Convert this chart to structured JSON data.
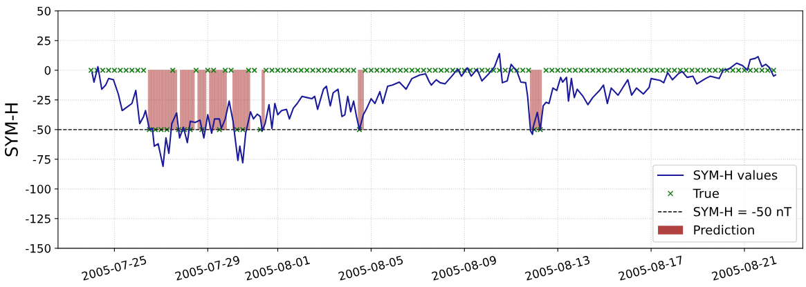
{
  "chart_data": {
    "type": "line",
    "ylabel": "SYM-H",
    "xlim": [
      "2005-07-22T14:00",
      "2005-08-23T12:00"
    ],
    "xticks": [
      "2005-07-25",
      "2005-07-29",
      "2005-08-01",
      "2005-08-05",
      "2005-08-09",
      "2005-08-13",
      "2005-08-17",
      "2005-08-21"
    ],
    "ylim": [
      -150,
      50
    ],
    "yticks": [
      -150,
      -125,
      -100,
      -75,
      -50,
      -25,
      0,
      25,
      50
    ],
    "grid": true,
    "legend": "bottom right",
    "ref_lines": [
      {
        "axis": "y",
        "value": -50,
        "label": "SYM-H = -50 nT",
        "color": "#000000",
        "line_style": "dashed"
      }
    ],
    "series": [
      {
        "name": "SYM-H values",
        "color": "#1a1a9a",
        "line_style": "solid",
        "x": [
          "2005-07-24T01:00",
          "2005-07-24T03:00",
          "2005-07-24T07:00",
          "2005-07-24T11:00",
          "2005-07-24T15:00",
          "2005-07-24T18:00",
          "2005-07-24T23:00",
          "2005-07-25T04:00",
          "2005-07-25T08:00",
          "2005-07-25T13:00",
          "2005-07-25T18:00",
          "2005-07-25T22:00",
          "2005-07-26T02:00",
          "2005-07-26T06:00",
          "2005-07-26T08:00",
          "2005-07-26T12:00",
          "2005-07-26T15:00",
          "2005-07-26T17:00",
          "2005-07-26T21:00",
          "2005-07-27T02:00",
          "2005-07-27T05:00",
          "2005-07-27T08:00",
          "2005-07-27T11:00",
          "2005-07-27T16:00",
          "2005-07-27T19:00",
          "2005-07-27T23:00",
          "2005-07-28T03:00",
          "2005-07-28T06:00",
          "2005-07-28T11:00",
          "2005-07-28T16:00",
          "2005-07-28T20:00",
          "2005-07-29T00:00",
          "2005-07-29T04:00",
          "2005-07-29T07:00",
          "2005-07-29T12:00",
          "2005-07-29T14:00",
          "2005-07-29T18:00",
          "2005-07-29T22:00",
          "2005-07-30T02:00",
          "2005-07-30T07:00",
          "2005-07-30T09:00",
          "2005-07-30T12:00",
          "2005-07-30T15:00",
          "2005-07-30T20:00",
          "2005-07-30T23:00",
          "2005-07-31T03:00",
          "2005-07-31T06:00",
          "2005-07-31T08:00",
          "2005-07-31T11:00",
          "2005-07-31T15:00",
          "2005-07-31T18:00",
          "2005-07-31T21:00",
          "2005-08-01T00:00",
          "2005-08-01T04:00",
          "2005-08-01T09:00",
          "2005-08-01T12:00",
          "2005-08-01T16:00",
          "2005-08-01T20:00",
          "2005-08-02T01:00",
          "2005-08-02T06:00",
          "2005-08-02T11:00",
          "2005-08-02T14:00",
          "2005-08-02T17:00",
          "2005-08-02T23:00",
          "2005-08-03T02:00",
          "2005-08-03T06:00",
          "2005-08-03T09:00",
          "2005-08-03T14:00",
          "2005-08-03T18:00",
          "2005-08-03T21:00",
          "2005-08-04T00:00",
          "2005-08-04T03:00",
          "2005-08-04T06:00",
          "2005-08-04T09:00",
          "2005-08-04T12:00",
          "2005-08-04T16:00",
          "2005-08-04T19:00",
          "2005-08-05T00:00",
          "2005-08-05T04:00",
          "2005-08-05T09:00",
          "2005-08-05T12:00",
          "2005-08-05T17:00",
          "2005-08-05T22:00",
          "2005-08-06T05:00",
          "2005-08-06T12:00",
          "2005-08-06T18:00",
          "2005-08-07T02:00",
          "2005-08-07T08:00",
          "2005-08-07T12:00",
          "2005-08-07T14:00",
          "2005-08-07T19:00",
          "2005-08-07T23:00",
          "2005-08-08T04:00",
          "2005-08-08T11:00",
          "2005-08-08T17:00",
          "2005-08-08T21:00",
          "2005-08-09T03:00",
          "2005-08-09T07:00",
          "2005-08-09T13:00",
          "2005-08-09T18:00",
          "2005-08-10T01:00",
          "2005-08-10T07:00",
          "2005-08-10T12:00",
          "2005-08-10T15:00",
          "2005-08-10T20:00",
          "2005-08-11T00:00",
          "2005-08-11T06:00",
          "2005-08-11T10:00",
          "2005-08-11T15:00",
          "2005-08-11T17:00",
          "2005-08-11T20:00",
          "2005-08-11T22:00",
          "2005-08-11T23:00",
          "2005-08-12T03:00",
          "2005-08-12T06:00",
          "2005-08-12T09:00",
          "2005-08-12T12:00",
          "2005-08-12T15:00",
          "2005-08-12T19:00",
          "2005-08-12T23:00",
          "2005-08-13T03:00",
          "2005-08-13T05:00",
          "2005-08-13T09:00",
          "2005-08-13T11:00",
          "2005-08-13T14:00",
          "2005-08-13T17:00",
          "2005-08-13T20:00",
          "2005-08-14T02:00",
          "2005-08-14T07:00",
          "2005-08-14T12:00",
          "2005-08-14T19:00",
          "2005-08-14T23:00",
          "2005-08-15T03:00",
          "2005-08-15T07:00",
          "2005-08-15T14:00",
          "2005-08-15T19:00",
          "2005-08-16T00:00",
          "2005-08-16T04:00",
          "2005-08-16T09:00",
          "2005-08-16T16:00",
          "2005-08-16T22:00",
          "2005-08-17T00:00",
          "2005-08-17T09:00",
          "2005-08-17T13:00",
          "2005-08-17T17:00",
          "2005-08-17T22:00",
          "2005-08-18T04:00",
          "2005-08-18T08:00",
          "2005-08-18T13:00",
          "2005-08-18T19:00",
          "2005-08-18T23:00",
          "2005-08-19T08:00",
          "2005-08-19T13:00",
          "2005-08-19T22:00",
          "2005-08-20T02:00",
          "2005-08-20T08:00",
          "2005-08-20T16:00",
          "2005-08-20T22:00",
          "2005-08-21T03:00",
          "2005-08-21T06:00",
          "2005-08-21T11:00",
          "2005-08-21T14:00",
          "2005-08-21T18:00",
          "2005-08-21T22:00",
          "2005-08-22T02:00",
          "2005-08-22T06:00",
          "2005-08-22T08:00"
        ],
        "values": [
          -2,
          -10,
          3,
          -16,
          -12.5,
          -7,
          -8,
          -20,
          -34,
          -31,
          -28,
          -17,
          -45,
          -39,
          -34,
          -50,
          -49,
          -64,
          -62,
          -81,
          -57,
          -70,
          -45,
          -36,
          -57,
          -48,
          -61,
          -43,
          -44,
          -42,
          -57,
          -37.5,
          -53,
          -41,
          -41,
          -49,
          -41,
          -26,
          -43,
          -76,
          -64,
          -78,
          -53,
          -35,
          -41,
          -37,
          -39,
          -51,
          -45,
          -29,
          -49,
          -28,
          -37.5,
          -34,
          -33,
          -41,
          -32,
          -28,
          -22,
          -23,
          -24,
          -22,
          -33,
          -16,
          -13.5,
          -30,
          -19,
          -16,
          -39,
          -37.5,
          -22,
          -35,
          -26,
          -39,
          -50,
          -37.5,
          -33,
          -24,
          -28,
          -18,
          -28,
          -13.5,
          -12.5,
          -10,
          -16,
          -7,
          -4,
          -3,
          -10,
          -12.5,
          -8,
          -10.5,
          -11.5,
          -5,
          1,
          -5,
          2,
          -5,
          1,
          -9,
          -3,
          3,
          14,
          -10.5,
          -9,
          5,
          -1,
          -10,
          -10.5,
          -22,
          -51,
          -54,
          -47,
          -35.5,
          -50,
          -30,
          -27,
          -28,
          -15,
          -17,
          -6,
          -10,
          -6,
          -26,
          -7,
          -23,
          -16,
          -22,
          -29,
          -23,
          -17,
          -12.5,
          -28,
          -15,
          -21,
          -14.5,
          -8,
          -21,
          -15,
          -20,
          -14.5,
          -7,
          -8.5,
          -10.5,
          -2,
          -8,
          -3,
          -1,
          -6,
          -5,
          -11.5,
          -7,
          -5,
          -7,
          0,
          1,
          6,
          4,
          0,
          9,
          10,
          11.5,
          3,
          5,
          2,
          -5,
          -4
        ]
      },
      {
        "name": "True",
        "type": "scatter",
        "marker": "cross",
        "color": "#1b7d1b",
        "x": [
          "2005-07-24T00:00",
          "2005-07-24T06:00",
          "2005-07-24T12:00",
          "2005-07-24T18:00",
          "2005-07-25T00:00",
          "2005-07-25T06:00",
          "2005-07-25T12:00",
          "2005-07-25T18:00",
          "2005-07-26T00:00",
          "2005-07-26T06:00",
          "2005-07-26T12:00",
          "2005-07-26T18:00",
          "2005-07-27T00:00",
          "2005-07-27T06:00",
          "2005-07-27T12:00",
          "2005-07-27T18:00",
          "2005-07-28T00:00",
          "2005-07-28T06:00",
          "2005-07-28T12:00",
          "2005-07-28T18:00",
          "2005-07-29T00:00",
          "2005-07-29T06:00",
          "2005-07-29T12:00",
          "2005-07-29T18:00",
          "2005-07-30T00:00",
          "2005-07-30T06:00",
          "2005-07-30T12:00",
          "2005-07-30T18:00",
          "2005-07-31T00:00",
          "2005-07-31T06:00",
          "2005-07-31T12:00",
          "2005-07-31T18:00",
          "2005-08-01T00:00",
          "2005-08-01T06:00",
          "2005-08-01T12:00",
          "2005-08-01T18:00",
          "2005-08-02T00:00",
          "2005-08-02T06:00",
          "2005-08-02T12:00",
          "2005-08-02T18:00",
          "2005-08-03T00:00",
          "2005-08-03T06:00",
          "2005-08-03T12:00",
          "2005-08-03T18:00",
          "2005-08-04T00:00",
          "2005-08-04T06:00",
          "2005-08-04T12:00",
          "2005-08-04T18:00",
          "2005-08-05T00:00",
          "2005-08-05T06:00",
          "2005-08-05T12:00",
          "2005-08-05T18:00",
          "2005-08-06T00:00",
          "2005-08-06T06:00",
          "2005-08-06T12:00",
          "2005-08-06T18:00",
          "2005-08-07T00:00",
          "2005-08-07T06:00",
          "2005-08-07T12:00",
          "2005-08-07T18:00",
          "2005-08-08T00:00",
          "2005-08-08T06:00",
          "2005-08-08T12:00",
          "2005-08-08T18:00",
          "2005-08-09T00:00",
          "2005-08-09T06:00",
          "2005-08-09T12:00",
          "2005-08-09T18:00",
          "2005-08-10T00:00",
          "2005-08-10T06:00",
          "2005-08-10T12:00",
          "2005-08-10T18:00",
          "2005-08-11T00:00",
          "2005-08-11T06:00",
          "2005-08-11T12:00",
          "2005-08-11T18:00",
          "2005-08-12T00:00",
          "2005-08-12T06:00",
          "2005-08-12T12:00",
          "2005-08-12T18:00",
          "2005-08-13T00:00",
          "2005-08-13T06:00",
          "2005-08-13T12:00",
          "2005-08-13T18:00",
          "2005-08-14T00:00",
          "2005-08-14T06:00",
          "2005-08-14T12:00",
          "2005-08-14T18:00",
          "2005-08-15T00:00",
          "2005-08-15T06:00",
          "2005-08-15T12:00",
          "2005-08-15T18:00",
          "2005-08-16T00:00",
          "2005-08-16T06:00",
          "2005-08-16T12:00",
          "2005-08-16T18:00",
          "2005-08-17T00:00",
          "2005-08-17T06:00",
          "2005-08-17T12:00",
          "2005-08-17T18:00",
          "2005-08-18T00:00",
          "2005-08-18T06:00",
          "2005-08-18T12:00",
          "2005-08-18T18:00",
          "2005-08-19T00:00",
          "2005-08-19T06:00",
          "2005-08-19T12:00",
          "2005-08-19T18:00",
          "2005-08-20T00:00",
          "2005-08-20T06:00",
          "2005-08-20T12:00",
          "2005-08-20T18:00",
          "2005-08-21T00:00",
          "2005-08-21T06:00",
          "2005-08-21T12:00",
          "2005-08-21T18:00",
          "2005-08-22T00:00",
          "2005-08-22T06:00"
        ],
        "values": [
          0,
          0,
          0,
          0,
          0,
          0,
          0,
          0,
          0,
          0,
          -50,
          -50,
          -50,
          -50,
          0,
          -50,
          -50,
          -50,
          0,
          -50,
          0,
          0,
          -50,
          0,
          0,
          -50,
          -50,
          0,
          0,
          -50,
          0,
          0,
          0,
          0,
          0,
          0,
          0,
          0,
          0,
          0,
          0,
          0,
          0,
          0,
          0,
          0,
          -50,
          0,
          0,
          0,
          0,
          0,
          0,
          0,
          0,
          0,
          0,
          0,
          0,
          0,
          0,
          0,
          0,
          0,
          0,
          0,
          0,
          0,
          0,
          0,
          0,
          0,
          0,
          0,
          0,
          0,
          -50,
          -50,
          0,
          0,
          0,
          0,
          0,
          0,
          0,
          0,
          0,
          0,
          0,
          0,
          0,
          0,
          0,
          0,
          0,
          0,
          0,
          0,
          0,
          0,
          0,
          0,
          0,
          0,
          0,
          0,
          0,
          0,
          0,
          0,
          0,
          0,
          0,
          0,
          0,
          0,
          0,
          0
        ]
      },
      {
        "name": "Prediction",
        "type": "bar",
        "color": "#b0413e",
        "x": [
          "2005-07-26T12:00",
          "2005-07-26T15:00",
          "2005-07-26T18:00",
          "2005-07-26T21:00",
          "2005-07-27T00:00",
          "2005-07-27T03:00",
          "2005-07-27T06:00",
          "2005-07-27T09:00",
          "2005-07-27T12:00",
          "2005-07-27T15:00",
          "2005-07-27T21:00",
          "2005-07-28T00:00",
          "2005-07-28T03:00",
          "2005-07-28T06:00",
          "2005-07-28T09:00",
          "2005-07-28T15:00",
          "2005-07-28T18:00",
          "2005-07-28T21:00",
          "2005-07-29T03:00",
          "2005-07-29T06:00",
          "2005-07-29T09:00",
          "2005-07-29T12:00",
          "2005-07-29T15:00",
          "2005-07-29T18:00",
          "2005-07-30T03:00",
          "2005-07-30T06:00",
          "2005-07-30T09:00",
          "2005-07-30T12:00",
          "2005-07-30T15:00",
          "2005-07-30T18:00",
          "2005-07-31T09:00",
          "2005-08-04T12:00",
          "2005-08-04T15:00",
          "2005-08-11T21:00",
          "2005-08-12T00:00",
          "2005-08-12T03:00",
          "2005-08-12T06:00"
        ],
        "values": [
          -50,
          -50,
          -50,
          -50,
          -50,
          -50,
          -50,
          -50,
          -50,
          -50,
          -50,
          -50,
          -50,
          -50,
          -50,
          -50,
          -50,
          -50,
          -50,
          -50,
          -50,
          -50,
          -50,
          -50,
          -50,
          -50,
          -50,
          -50,
          -50,
          -50,
          -50,
          -50,
          -50,
          -50,
          -50,
          -50,
          -50
        ]
      }
    ]
  }
}
